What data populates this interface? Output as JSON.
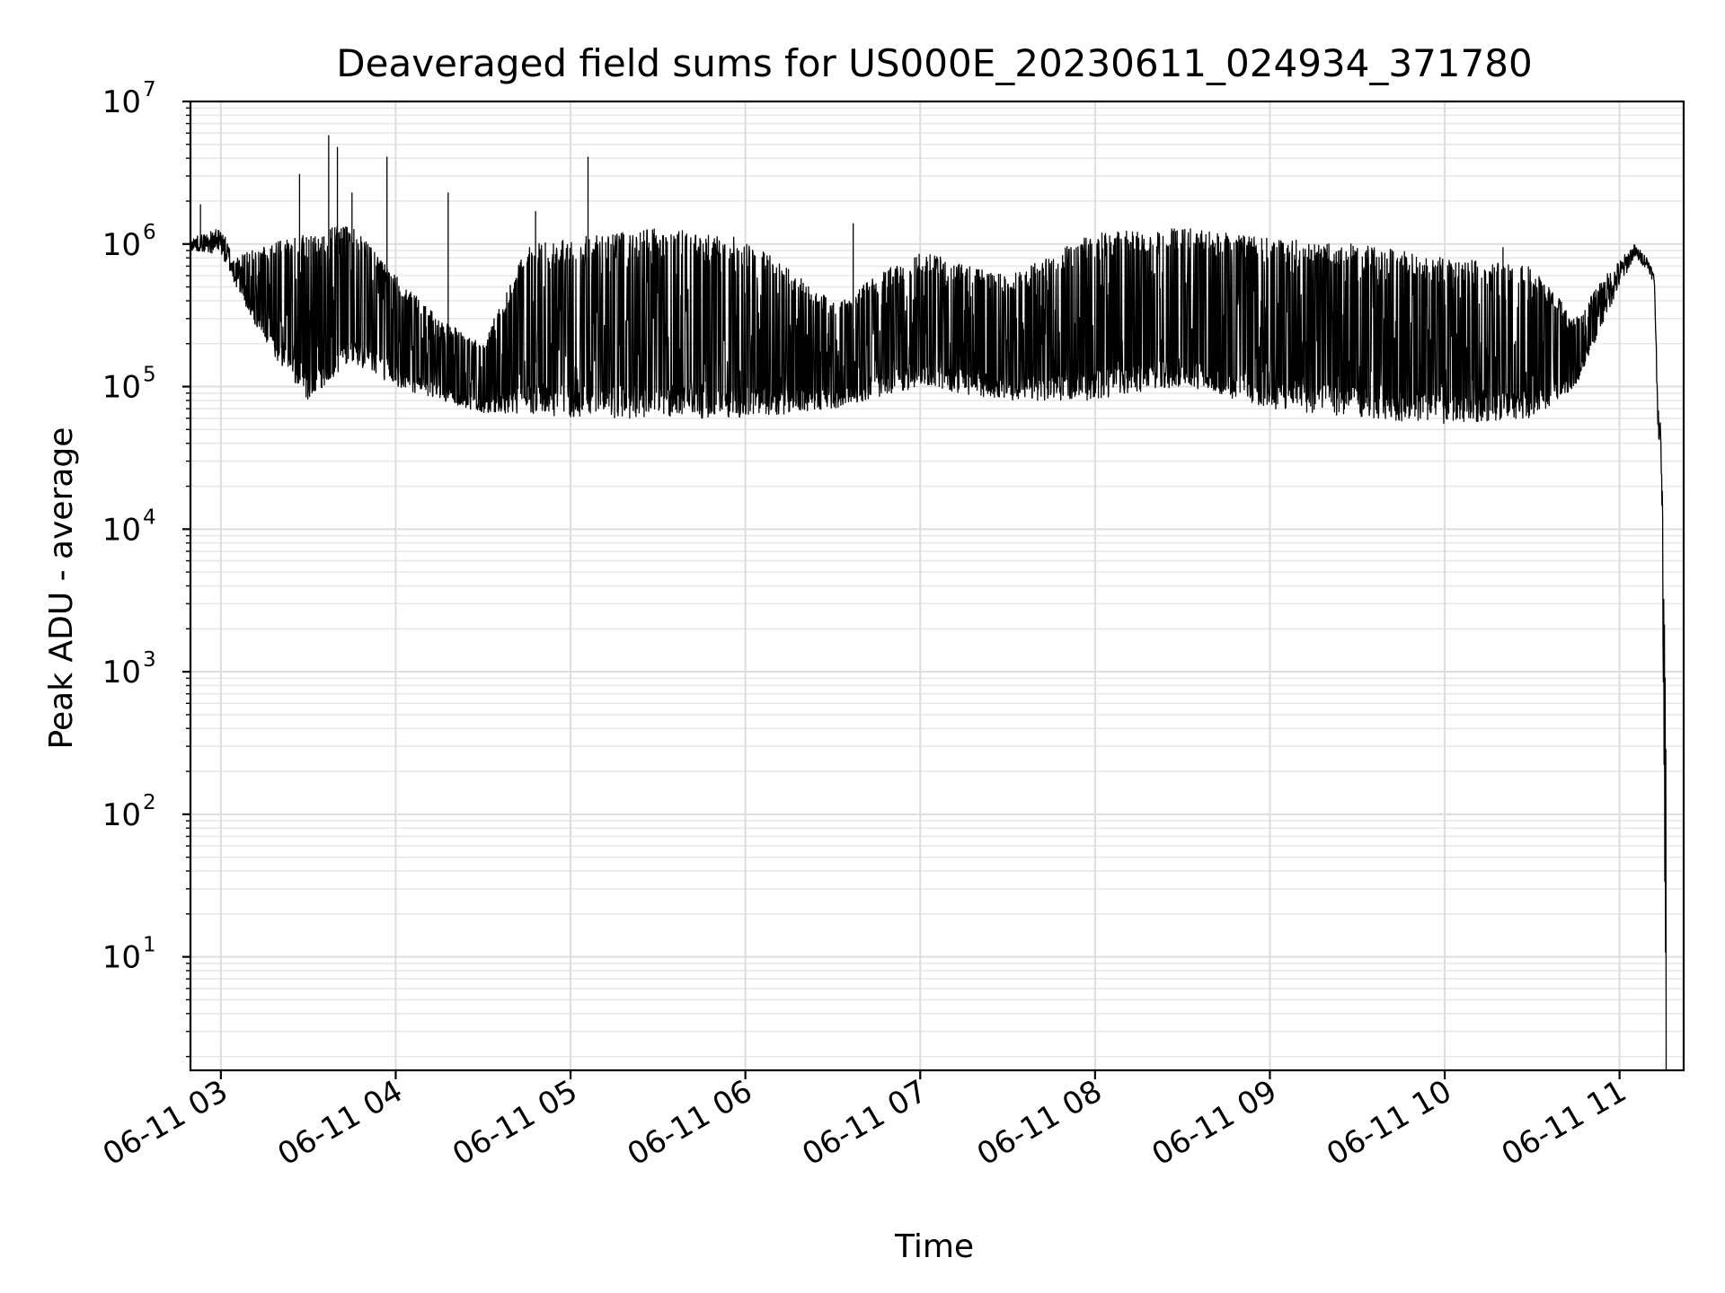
{
  "chart_data": {
    "type": "line",
    "title": "Deaveraged field sums for US000E_20230611_024934_371780",
    "xlabel": "Time",
    "ylabel": "Peak ADU - average",
    "yscale": "log",
    "ylim": [
      1.6,
      10000000
    ],
    "xlim": [
      "2023-06-11T02:49:34",
      "2023-06-11T11:22:00"
    ],
    "grid": true,
    "legend": "none",
    "line_color": "#000000",
    "x_ticks": [
      {
        "value": "2023-06-11T03:00:00",
        "label": "06-11 03"
      },
      {
        "value": "2023-06-11T04:00:00",
        "label": "06-11 04"
      },
      {
        "value": "2023-06-11T05:00:00",
        "label": "06-11 05"
      },
      {
        "value": "2023-06-11T06:00:00",
        "label": "06-11 06"
      },
      {
        "value": "2023-06-11T07:00:00",
        "label": "06-11 07"
      },
      {
        "value": "2023-06-11T08:00:00",
        "label": "06-11 08"
      },
      {
        "value": "2023-06-11T09:00:00",
        "label": "06-11 09"
      },
      {
        "value": "2023-06-11T10:00:00",
        "label": "06-11 10"
      },
      {
        "value": "2023-06-11T11:00:00",
        "label": "06-11 11"
      }
    ],
    "y_ticks": [
      {
        "value": 10,
        "base": "10",
        "exp": "1"
      },
      {
        "value": 100,
        "base": "10",
        "exp": "2"
      },
      {
        "value": 1000,
        "base": "10",
        "exp": "3"
      },
      {
        "value": 10000,
        "base": "10",
        "exp": "4"
      },
      {
        "value": 100000,
        "base": "10",
        "exp": "5"
      },
      {
        "value": 1000000,
        "base": "10",
        "exp": "6"
      },
      {
        "value": 10000000,
        "base": "10",
        "exp": "7"
      }
    ],
    "series": [
      {
        "envelope": [
          {
            "t": "2023-06-11T02:49:34",
            "low": 900000,
            "high": 1100000
          },
          {
            "t": "2023-06-11T03:00:00",
            "low": 850000,
            "high": 1300000
          },
          {
            "t": "2023-06-11T03:05:00",
            "low": 500000,
            "high": 800000
          },
          {
            "t": "2023-06-11T03:15:00",
            "low": 200000,
            "high": 1000000
          },
          {
            "t": "2023-06-11T03:30:00",
            "low": 80000,
            "high": 1200000
          },
          {
            "t": "2023-06-11T03:45:00",
            "low": 150000,
            "high": 1400000
          },
          {
            "t": "2023-06-11T04:00:00",
            "low": 100000,
            "high": 600000
          },
          {
            "t": "2023-06-11T04:15:00",
            "low": 80000,
            "high": 300000
          },
          {
            "t": "2023-06-11T04:30:00",
            "low": 65000,
            "high": 200000
          },
          {
            "t": "2023-06-11T04:45:00",
            "low": 65000,
            "high": 1000000
          },
          {
            "t": "2023-06-11T05:00:00",
            "low": 60000,
            "high": 1100000
          },
          {
            "t": "2023-06-11T05:30:00",
            "low": 60000,
            "high": 1300000
          },
          {
            "t": "2023-06-11T06:00:00",
            "low": 60000,
            "high": 1100000
          },
          {
            "t": "2023-06-11T06:30:00",
            "low": 70000,
            "high": 400000
          },
          {
            "t": "2023-06-11T07:00:00",
            "low": 100000,
            "high": 900000
          },
          {
            "t": "2023-06-11T07:30:00",
            "low": 80000,
            "high": 600000
          },
          {
            "t": "2023-06-11T08:00:00",
            "low": 80000,
            "high": 1200000
          },
          {
            "t": "2023-06-11T08:30:00",
            "low": 100000,
            "high": 1300000
          },
          {
            "t": "2023-06-11T09:00:00",
            "low": 70000,
            "high": 1100000
          },
          {
            "t": "2023-06-11T09:30:00",
            "low": 60000,
            "high": 1000000
          },
          {
            "t": "2023-06-11T10:00:00",
            "low": 55000,
            "high": 800000
          },
          {
            "t": "2023-06-11T10:30:00",
            "low": 60000,
            "high": 700000
          },
          {
            "t": "2023-06-11T10:45:00",
            "low": 100000,
            "high": 300000
          },
          {
            "t": "2023-06-11T10:55:00",
            "low": 300000,
            "high": 600000
          },
          {
            "t": "2023-06-11T11:05:00",
            "low": 800000,
            "high": 1000000
          },
          {
            "t": "2023-06-11T11:10:00",
            "low": 650000,
            "high": 800000
          },
          {
            "t": "2023-06-11T11:12:00",
            "low": 500000,
            "high": 600000
          },
          {
            "t": "2023-06-11T11:13:00",
            "low": 60000,
            "high": 100000
          },
          {
            "t": "2023-06-11T11:14:30",
            "low": 20000,
            "high": 40000
          },
          {
            "t": "2023-06-11T11:16:00",
            "low": 1.6,
            "high": 300
          }
        ],
        "spikes": [
          {
            "t": "2023-06-11T02:53:00",
            "value": 1900000
          },
          {
            "t": "2023-06-11T03:27:00",
            "value": 3100000
          },
          {
            "t": "2023-06-11T03:37:00",
            "value": 5800000
          },
          {
            "t": "2023-06-11T03:40:00",
            "value": 4800000
          },
          {
            "t": "2023-06-11T03:45:00",
            "value": 2300000
          },
          {
            "t": "2023-06-11T03:57:00",
            "value": 4100000
          },
          {
            "t": "2023-06-11T04:18:00",
            "value": 2300000
          },
          {
            "t": "2023-06-11T04:48:00",
            "value": 1700000
          },
          {
            "t": "2023-06-11T05:06:00",
            "value": 4100000
          },
          {
            "t": "2023-06-11T06:37:00",
            "value": 1400000
          },
          {
            "t": "2023-06-11T10:20:00",
            "value": 950000
          }
        ]
      }
    ]
  }
}
